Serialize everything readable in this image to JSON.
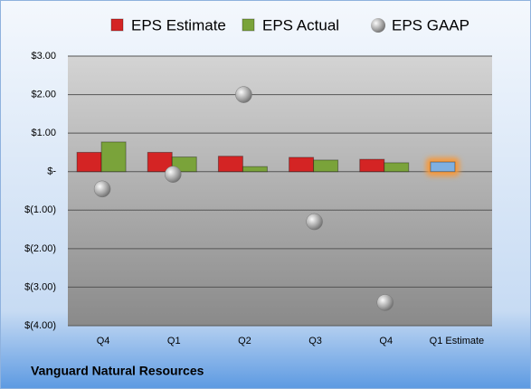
{
  "chart_data": {
    "type": "bar",
    "caption": "Vanguard Natural Resources",
    "categories": [
      "Q4",
      "Q1",
      "Q2",
      "Q3",
      "Q4",
      "Q1 Estimate"
    ],
    "series": [
      {
        "name": "EPS Estimate",
        "type": "bar",
        "color": "#d42424",
        "colors": [
          "#d42424",
          "#d42424",
          "#d42424",
          "#d42424",
          "#d42424",
          "#7fb0e0"
        ],
        "values": [
          0.5,
          0.5,
          0.4,
          0.37,
          0.32,
          0.25
        ]
      },
      {
        "name": "EPS Actual",
        "type": "bar",
        "color": "#7aa33a",
        "values": [
          0.77,
          0.38,
          0.13,
          0.3,
          0.23,
          null
        ]
      },
      {
        "name": "EPS GAAP",
        "type": "scatter",
        "color": "#b0b0b0",
        "values": [
          -0.45,
          -0.07,
          2.0,
          -1.3,
          -3.4,
          null
        ]
      }
    ],
    "ylim": [
      -4,
      3
    ],
    "yticks": [
      {
        "value": 3,
        "label": "$3.00"
      },
      {
        "value": 2,
        "label": "$2.00"
      },
      {
        "value": 1,
        "label": "$1.00"
      },
      {
        "value": 0,
        "label": "$-"
      },
      {
        "value": -1,
        "label": "$(1.00)"
      },
      {
        "value": -2,
        "label": "$(2.00)"
      },
      {
        "value": -3,
        "label": "$(3.00)"
      },
      {
        "value": -4,
        "label": "$(4.00)"
      }
    ],
    "grid": true,
    "legend": "top"
  }
}
